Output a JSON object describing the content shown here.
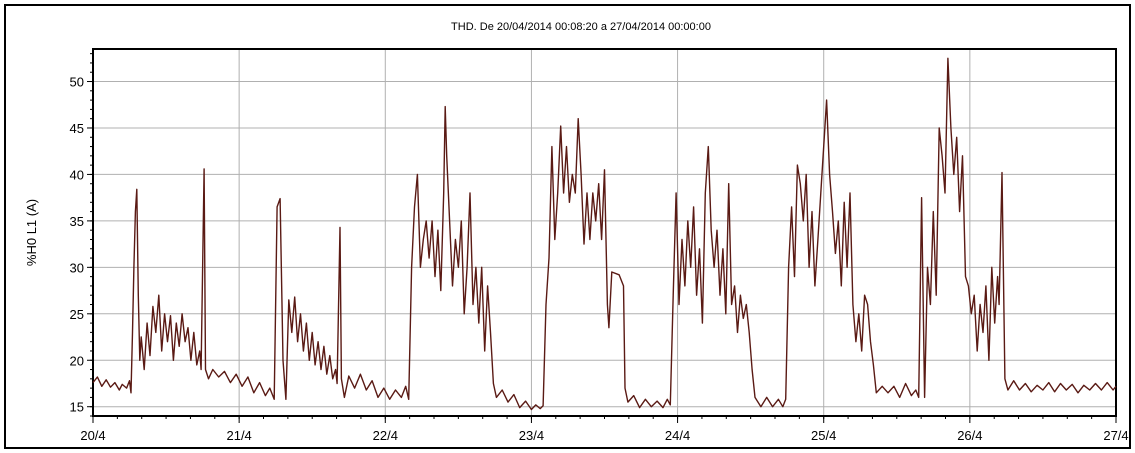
{
  "chart_data": {
    "type": "line",
    "title": "THD. De 20/04/2014 00:08:20 a 27/04/2014 00:00:00",
    "xlabel": "",
    "ylabel": "%H0 L1 (A)",
    "x_ticks": [
      "20/4",
      "21/4",
      "22/4",
      "23/4",
      "24/4",
      "25/4",
      "26/4",
      "27/4"
    ],
    "xlim": [
      0,
      7
    ],
    "y_ticks": [
      15,
      20,
      25,
      30,
      35,
      40,
      45,
      50
    ],
    "ylim": [
      14,
      53.5
    ],
    "grid": true,
    "colors": {
      "line": "#5a1a14",
      "line_highlight": "#b5401e",
      "grid": "#b0b0b0",
      "axis": "#000000"
    },
    "series": [
      {
        "points": [
          [
            0.0,
            17.6
          ],
          [
            0.03,
            18.2
          ],
          [
            0.06,
            17.2
          ],
          [
            0.09,
            17.9
          ],
          [
            0.12,
            17.1
          ],
          [
            0.15,
            17.6
          ],
          [
            0.18,
            16.8
          ],
          [
            0.2,
            17.4
          ],
          [
            0.23,
            17.0
          ],
          [
            0.25,
            17.8
          ],
          [
            0.26,
            16.5
          ],
          [
            0.27,
            23.0
          ],
          [
            0.28,
            30.0
          ],
          [
            0.29,
            36.0
          ],
          [
            0.3,
            38.4
          ],
          [
            0.31,
            27.0
          ],
          [
            0.32,
            20.0
          ],
          [
            0.33,
            22.5
          ],
          [
            0.35,
            19.0
          ],
          [
            0.37,
            24.0
          ],
          [
            0.39,
            20.5
          ],
          [
            0.41,
            25.8
          ],
          [
            0.43,
            23.0
          ],
          [
            0.45,
            27.0
          ],
          [
            0.47,
            21.0
          ],
          [
            0.49,
            25.0
          ],
          [
            0.51,
            22.0
          ],
          [
            0.53,
            24.8
          ],
          [
            0.55,
            20.0
          ],
          [
            0.57,
            24.0
          ],
          [
            0.59,
            21.5
          ],
          [
            0.61,
            25.0
          ],
          [
            0.63,
            22.0
          ],
          [
            0.65,
            23.5
          ],
          [
            0.67,
            20.0
          ],
          [
            0.69,
            23.0
          ],
          [
            0.71,
            19.5
          ],
          [
            0.73,
            21.0
          ],
          [
            0.74,
            19.0
          ],
          [
            0.76,
            40.6
          ],
          [
            0.77,
            19.0
          ],
          [
            0.79,
            18.0
          ],
          [
            0.82,
            19.0
          ],
          [
            0.86,
            18.2
          ],
          [
            0.9,
            18.8
          ],
          [
            0.94,
            17.6
          ],
          [
            0.98,
            18.5
          ],
          [
            1.02,
            17.2
          ],
          [
            1.06,
            18.2
          ],
          [
            1.1,
            16.5
          ],
          [
            1.14,
            17.6
          ],
          [
            1.18,
            16.2
          ],
          [
            1.21,
            17.0
          ],
          [
            1.24,
            15.8
          ],
          [
            1.26,
            36.5
          ],
          [
            1.28,
            37.4
          ],
          [
            1.3,
            20.0
          ],
          [
            1.32,
            15.8
          ],
          [
            1.34,
            26.5
          ],
          [
            1.36,
            23.0
          ],
          [
            1.38,
            26.8
          ],
          [
            1.4,
            22.0
          ],
          [
            1.42,
            25.0
          ],
          [
            1.44,
            21.0
          ],
          [
            1.46,
            24.0
          ],
          [
            1.48,
            20.0
          ],
          [
            1.5,
            23.0
          ],
          [
            1.52,
            19.5
          ],
          [
            1.54,
            22.0
          ],
          [
            1.56,
            19.0
          ],
          [
            1.58,
            21.5
          ],
          [
            1.6,
            18.5
          ],
          [
            1.62,
            20.5
          ],
          [
            1.64,
            18.0
          ],
          [
            1.66,
            19.0
          ],
          [
            1.67,
            17.5
          ],
          [
            1.69,
            34.3
          ],
          [
            1.7,
            18.0
          ],
          [
            1.72,
            16.0
          ],
          [
            1.75,
            18.3
          ],
          [
            1.79,
            17.0
          ],
          [
            1.83,
            18.5
          ],
          [
            1.87,
            16.8
          ],
          [
            1.91,
            17.8
          ],
          [
            1.95,
            16.0
          ],
          [
            1.99,
            17.0
          ],
          [
            2.03,
            15.8
          ],
          [
            2.07,
            16.8
          ],
          [
            2.11,
            16.0
          ],
          [
            2.14,
            17.2
          ],
          [
            2.16,
            15.8
          ],
          [
            2.18,
            30.0
          ],
          [
            2.2,
            36.5
          ],
          [
            2.22,
            40.0
          ],
          [
            2.24,
            30.0
          ],
          [
            2.26,
            33.0
          ],
          [
            2.28,
            35.0
          ],
          [
            2.3,
            31.0
          ],
          [
            2.32,
            35.0
          ],
          [
            2.34,
            29.0
          ],
          [
            2.36,
            34.0
          ],
          [
            2.38,
            27.5
          ],
          [
            2.4,
            38.0
          ],
          [
            2.41,
            47.3
          ],
          [
            2.42,
            42.0
          ],
          [
            2.44,
            35.0
          ],
          [
            2.46,
            28.0
          ],
          [
            2.48,
            33.0
          ],
          [
            2.5,
            30.0
          ],
          [
            2.52,
            35.0
          ],
          [
            2.54,
            25.0
          ],
          [
            2.56,
            30.0
          ],
          [
            2.58,
            38.0
          ],
          [
            2.6,
            26.0
          ],
          [
            2.62,
            30.0
          ],
          [
            2.64,
            24.0
          ],
          [
            2.66,
            30.0
          ],
          [
            2.68,
            21.0
          ],
          [
            2.7,
            28.0
          ],
          [
            2.72,
            23.0
          ],
          [
            2.74,
            17.5
          ],
          [
            2.76,
            16.0
          ],
          [
            2.8,
            16.8
          ],
          [
            2.84,
            15.5
          ],
          [
            2.88,
            16.3
          ],
          [
            2.92,
            14.9
          ],
          [
            2.96,
            15.6
          ],
          [
            3.0,
            14.7
          ],
          [
            3.03,
            15.2
          ],
          [
            3.06,
            14.8
          ],
          [
            3.08,
            15.1
          ],
          [
            3.1,
            26.0
          ],
          [
            3.12,
            31.0
          ],
          [
            3.14,
            43.0
          ],
          [
            3.16,
            33.0
          ],
          [
            3.18,
            38.0
          ],
          [
            3.2,
            45.2
          ],
          [
            3.22,
            38.0
          ],
          [
            3.24,
            43.0
          ],
          [
            3.26,
            37.0
          ],
          [
            3.28,
            40.0
          ],
          [
            3.3,
            38.0
          ],
          [
            3.32,
            46.0
          ],
          [
            3.34,
            40.0
          ],
          [
            3.36,
            32.5
          ],
          [
            3.38,
            38.0
          ],
          [
            3.4,
            33.0
          ],
          [
            3.42,
            38.0
          ],
          [
            3.44,
            35.0
          ],
          [
            3.46,
            39.0
          ],
          [
            3.48,
            33.0
          ],
          [
            3.5,
            40.5
          ],
          [
            3.52,
            26.0
          ],
          [
            3.53,
            23.5
          ],
          [
            3.55,
            29.5
          ],
          [
            3.6,
            29.2
          ],
          [
            3.63,
            28.0
          ],
          [
            3.64,
            17.0
          ],
          [
            3.66,
            15.5
          ],
          [
            3.7,
            16.2
          ],
          [
            3.74,
            14.9
          ],
          [
            3.78,
            15.8
          ],
          [
            3.82,
            15.0
          ],
          [
            3.86,
            15.6
          ],
          [
            3.9,
            14.9
          ],
          [
            3.93,
            15.8
          ],
          [
            3.95,
            15.2
          ],
          [
            3.97,
            27.0
          ],
          [
            3.99,
            38.0
          ],
          [
            4.01,
            26.0
          ],
          [
            4.03,
            33.0
          ],
          [
            4.05,
            28.0
          ],
          [
            4.07,
            35.0
          ],
          [
            4.09,
            30.0
          ],
          [
            4.11,
            36.5
          ],
          [
            4.13,
            27.0
          ],
          [
            4.15,
            32.0
          ],
          [
            4.17,
            24.0
          ],
          [
            4.19,
            38.0
          ],
          [
            4.21,
            43.0
          ],
          [
            4.23,
            34.0
          ],
          [
            4.25,
            30.0
          ],
          [
            4.27,
            34.0
          ],
          [
            4.29,
            27.0
          ],
          [
            4.31,
            32.0
          ],
          [
            4.33,
            25.0
          ],
          [
            4.35,
            39.0
          ],
          [
            4.37,
            26.0
          ],
          [
            4.39,
            28.0
          ],
          [
            4.41,
            23.0
          ],
          [
            4.43,
            27.0
          ],
          [
            4.45,
            24.5
          ],
          [
            4.47,
            26.0
          ],
          [
            4.49,
            23.0
          ],
          [
            4.51,
            19.0
          ],
          [
            4.53,
            16.0
          ],
          [
            4.57,
            15.0
          ],
          [
            4.61,
            16.0
          ],
          [
            4.65,
            15.0
          ],
          [
            4.69,
            15.8
          ],
          [
            4.72,
            15.0
          ],
          [
            4.74,
            15.8
          ],
          [
            4.76,
            30.0
          ],
          [
            4.78,
            36.5
          ],
          [
            4.8,
            29.0
          ],
          [
            4.82,
            41.0
          ],
          [
            4.84,
            39.0
          ],
          [
            4.86,
            35.0
          ],
          [
            4.88,
            40.0
          ],
          [
            4.9,
            30.0
          ],
          [
            4.92,
            36.0
          ],
          [
            4.94,
            28.0
          ],
          [
            4.96,
            33.0
          ],
          [
            4.98,
            38.0
          ],
          [
            5.0,
            43.0
          ],
          [
            5.02,
            48.0
          ],
          [
            5.04,
            40.0
          ],
          [
            5.06,
            36.0
          ],
          [
            5.08,
            31.5
          ],
          [
            5.1,
            35.0
          ],
          [
            5.12,
            28.0
          ],
          [
            5.14,
            37.0
          ],
          [
            5.16,
            30.0
          ],
          [
            5.18,
            38.0
          ],
          [
            5.2,
            26.0
          ],
          [
            5.22,
            22.0
          ],
          [
            5.24,
            25.0
          ],
          [
            5.26,
            21.0
          ],
          [
            5.28,
            27.0
          ],
          [
            5.3,
            26.0
          ],
          [
            5.32,
            22.0
          ],
          [
            5.34,
            19.5
          ],
          [
            5.36,
            16.5
          ],
          [
            5.4,
            17.2
          ],
          [
            5.44,
            16.5
          ],
          [
            5.48,
            17.2
          ],
          [
            5.52,
            16.0
          ],
          [
            5.56,
            17.5
          ],
          [
            5.6,
            16.2
          ],
          [
            5.63,
            16.8
          ],
          [
            5.65,
            16.0
          ],
          [
            5.67,
            37.5
          ],
          [
            5.69,
            16.0
          ],
          [
            5.71,
            30.0
          ],
          [
            5.73,
            26.0
          ],
          [
            5.75,
            36.0
          ],
          [
            5.77,
            27.0
          ],
          [
            5.79,
            45.0
          ],
          [
            5.81,
            42.0
          ],
          [
            5.83,
            38.0
          ],
          [
            5.85,
            52.5
          ],
          [
            5.87,
            45.0
          ],
          [
            5.89,
            40.0
          ],
          [
            5.91,
            44.0
          ],
          [
            5.93,
            36.0
          ],
          [
            5.95,
            42.0
          ],
          [
            5.97,
            29.0
          ],
          [
            5.99,
            28.0
          ],
          [
            6.01,
            25.0
          ],
          [
            6.03,
            27.0
          ],
          [
            6.05,
            21.0
          ],
          [
            6.07,
            26.0
          ],
          [
            6.09,
            23.0
          ],
          [
            6.11,
            28.0
          ],
          [
            6.13,
            20.0
          ],
          [
            6.15,
            30.0
          ],
          [
            6.17,
            24.0
          ],
          [
            6.19,
            29.0
          ],
          [
            6.2,
            26.0
          ],
          [
            6.22,
            40.2
          ],
          [
            6.24,
            18.0
          ],
          [
            6.26,
            16.8
          ],
          [
            6.3,
            17.8
          ],
          [
            6.34,
            16.8
          ],
          [
            6.38,
            17.5
          ],
          [
            6.42,
            16.6
          ],
          [
            6.46,
            17.3
          ],
          [
            6.5,
            16.8
          ],
          [
            6.54,
            17.6
          ],
          [
            6.58,
            16.6
          ],
          [
            6.62,
            17.5
          ],
          [
            6.66,
            16.8
          ],
          [
            6.7,
            17.4
          ],
          [
            6.74,
            16.5
          ],
          [
            6.78,
            17.3
          ],
          [
            6.82,
            16.8
          ],
          [
            6.86,
            17.5
          ],
          [
            6.9,
            16.8
          ],
          [
            6.94,
            17.6
          ],
          [
            6.98,
            16.8
          ],
          [
            7.0,
            17.2
          ]
        ]
      }
    ]
  }
}
